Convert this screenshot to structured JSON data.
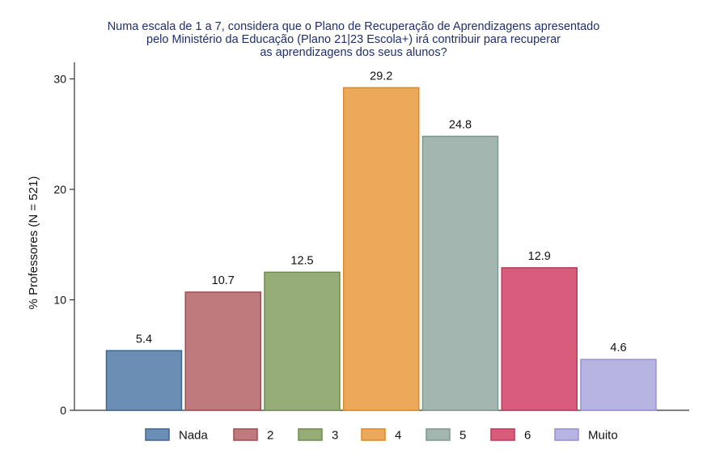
{
  "chart_data": {
    "type": "bar",
    "title_lines": [
      "Numa escala de 1 a 7, considera que o Plano de Recuperação de Aprendizagens apresentado",
      "pelo Ministério da Educação (Plano 21|23 Escola+) irá contribuir para recuperar",
      "as aprendizagens dos seus alunos?"
    ],
    "ylabel": "% Professores (N = 521)",
    "xlabel": "",
    "ylim": [
      0,
      31.5
    ],
    "yticks": [
      0,
      10,
      20,
      30
    ],
    "categories": [
      "Nada",
      "2",
      "3",
      "4",
      "5",
      "6",
      "Muito"
    ],
    "values": [
      5.4,
      10.7,
      12.5,
      29.2,
      24.8,
      12.9,
      4.6
    ],
    "value_labels": [
      "5.4",
      "10.7",
      "12.5",
      "29.2",
      "24.8",
      "12.9",
      "4.6"
    ],
    "colors": [
      "#6b8eb4",
      "#be7a7c",
      "#97ad77",
      "#eca95a",
      "#a3b7b0",
      "#d95c7c",
      "#b8b4e2"
    ],
    "stroke_colors": [
      "#3f6690",
      "#9c4e52",
      "#6e8b4e",
      "#d98b2c",
      "#7f978e",
      "#b83a5c",
      "#9590d2"
    ],
    "legend": [
      "Nada",
      "2",
      "3",
      "4",
      "5",
      "6",
      "Muito"
    ],
    "legend_position": "bottom",
    "grid": false
  }
}
